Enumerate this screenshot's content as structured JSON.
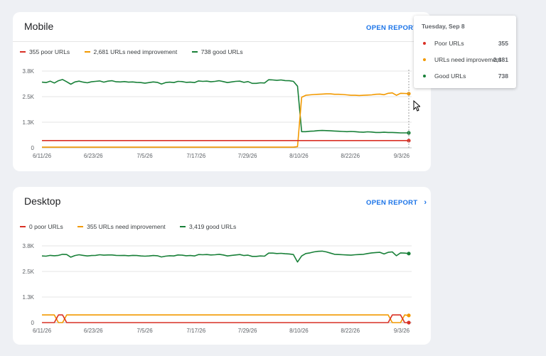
{
  "colors": {
    "poor": "#d93025",
    "needs": "#f29900",
    "good": "#188038",
    "accent": "#1a73e8",
    "grid": "#e0e0e0"
  },
  "mobile": {
    "title": "Mobile",
    "open_report": "OPEN REPORT",
    "legend": {
      "poor": "355 poor URLs",
      "needs": "2,681 URLs need improvement",
      "good": "738 good URLs"
    }
  },
  "desktop": {
    "title": "Desktop",
    "open_report": "OPEN REPORT",
    "legend": {
      "poor": "0 poor URLs",
      "needs": "355 URLs need improvement",
      "good": "3,419 good URLs"
    }
  },
  "tooltip": {
    "date": "Tuesday, Sep 8",
    "rows": [
      {
        "label": "Poor URLs",
        "value": "355"
      },
      {
        "label": "URLs need improvement",
        "value": "2,681"
      },
      {
        "label": "Good URLs",
        "value": "738"
      }
    ]
  },
  "chart_data": [
    {
      "type": "line",
      "name_hint": "Mobile",
      "x_ticks": [
        "6/11/26",
        "6/23/26",
        "7/5/26",
        "7/17/26",
        "7/29/26",
        "8/10/26",
        "8/22/26",
        "9/3/26"
      ],
      "y_ticks": [
        "0",
        "1.3K",
        "2.5K",
        "3.8K"
      ],
      "ylim": [
        0,
        3800
      ],
      "x_start": "6/11/26",
      "x_end": "9/8/26",
      "series": [
        {
          "key": "good",
          "values": [
            3250,
            3230,
            3300,
            3210,
            3320,
            3380,
            3270,
            3150,
            3260,
            3300,
            3250,
            3220,
            3270,
            3290,
            3310,
            3250,
            3300,
            3320,
            3270,
            3260,
            3280,
            3250,
            3260,
            3240,
            3230,
            3200,
            3230,
            3260,
            3240,
            3160,
            3230,
            3250,
            3230,
            3290,
            3280,
            3240,
            3250,
            3230,
            3310,
            3290,
            3300,
            3270,
            3290,
            3320,
            3280,
            3230,
            3260,
            3290,
            3300,
            3240,
            3280,
            3190,
            3190,
            3220,
            3210,
            3370,
            3360,
            3340,
            3360,
            3330,
            3320,
            3290,
            3050,
            800,
            800,
            820,
            830,
            850,
            860,
            850,
            840,
            830,
            820,
            810,
            800,
            810,
            800,
            780,
            770,
            790,
            780,
            760,
            760,
            770,
            760,
            760,
            750,
            740,
            740,
            738
          ]
        },
        {
          "key": "needs",
          "values": [
            30,
            30,
            30,
            30,
            30,
            30,
            30,
            30,
            30,
            30,
            30,
            30,
            30,
            30,
            30,
            30,
            30,
            30,
            30,
            30,
            30,
            30,
            30,
            30,
            30,
            30,
            30,
            30,
            30,
            30,
            30,
            30,
            30,
            30,
            30,
            30,
            30,
            30,
            30,
            30,
            30,
            30,
            30,
            30,
            30,
            30,
            30,
            30,
            30,
            30,
            30,
            30,
            30,
            30,
            30,
            30,
            30,
            30,
            30,
            30,
            30,
            30,
            60,
            2500,
            2600,
            2620,
            2640,
            2650,
            2660,
            2670,
            2670,
            2650,
            2650,
            2640,
            2620,
            2600,
            2600,
            2590,
            2600,
            2610,
            2620,
            2650,
            2660,
            2630,
            2700,
            2720,
            2600,
            2700,
            2690,
            2681
          ]
        },
        {
          "key": "poor",
          "values": [
            360,
            360,
            360,
            360,
            360,
            360,
            360,
            360,
            360,
            360,
            360,
            360,
            360,
            360,
            360,
            360,
            360,
            360,
            360,
            360,
            360,
            360,
            360,
            360,
            360,
            360,
            360,
            360,
            360,
            360,
            360,
            360,
            360,
            360,
            360,
            360,
            360,
            360,
            360,
            360,
            360,
            360,
            360,
            360,
            360,
            360,
            360,
            360,
            360,
            360,
            360,
            360,
            360,
            360,
            360,
            360,
            360,
            360,
            360,
            360,
            360,
            360,
            360,
            360,
            360,
            360,
            360,
            360,
            360,
            360,
            360,
            360,
            360,
            360,
            360,
            360,
            360,
            360,
            360,
            360,
            360,
            360,
            360,
            360,
            360,
            360,
            360,
            360,
            360,
            355
          ]
        }
      ]
    },
    {
      "type": "line",
      "name_hint": "Desktop",
      "x_ticks": [
        "6/11/26",
        "6/23/26",
        "7/5/26",
        "7/17/26",
        "7/29/26",
        "8/10/26",
        "8/22/26",
        "9/3/26"
      ],
      "y_ticks": [
        "0",
        "1.3K",
        "2.5K",
        "3.8K"
      ],
      "ylim": [
        0,
        3800
      ],
      "x_start": "6/11/26",
      "x_end": "9/8/26",
      "series": [
        {
          "key": "good",
          "values": [
            3300,
            3290,
            3330,
            3310,
            3330,
            3380,
            3370,
            3240,
            3320,
            3360,
            3330,
            3300,
            3320,
            3330,
            3360,
            3340,
            3350,
            3350,
            3330,
            3320,
            3330,
            3310,
            3330,
            3320,
            3300,
            3290,
            3300,
            3320,
            3310,
            3250,
            3290,
            3310,
            3300,
            3350,
            3340,
            3310,
            3320,
            3300,
            3370,
            3360,
            3370,
            3350,
            3360,
            3380,
            3350,
            3300,
            3330,
            3350,
            3370,
            3320,
            3340,
            3280,
            3280,
            3300,
            3290,
            3440,
            3440,
            3420,
            3430,
            3410,
            3400,
            3370,
            3000,
            3300,
            3420,
            3450,
            3500,
            3530,
            3540,
            3500,
            3440,
            3380,
            3370,
            3360,
            3350,
            3340,
            3360,
            3370,
            3380,
            3420,
            3450,
            3470,
            3480,
            3400,
            3480,
            3500,
            3310,
            3450,
            3440,
            3419
          ]
        },
        {
          "key": "needs",
          "values": [
            380,
            380,
            380,
            380,
            0,
            0,
            380,
            380,
            380,
            380,
            380,
            380,
            380,
            380,
            380,
            380,
            380,
            380,
            380,
            380,
            380,
            380,
            380,
            380,
            380,
            380,
            380,
            380,
            380,
            380,
            380,
            380,
            380,
            380,
            380,
            380,
            380,
            380,
            380,
            380,
            380,
            380,
            380,
            380,
            380,
            380,
            380,
            380,
            380,
            380,
            380,
            380,
            380,
            380,
            380,
            380,
            380,
            380,
            380,
            380,
            380,
            380,
            380,
            380,
            380,
            380,
            380,
            380,
            380,
            380,
            380,
            380,
            380,
            380,
            380,
            380,
            380,
            380,
            380,
            380,
            380,
            380,
            380,
            380,
            380,
            0,
            0,
            0,
            380,
            355
          ]
        },
        {
          "key": "poor",
          "values": [
            0,
            0,
            0,
            0,
            380,
            380,
            0,
            0,
            0,
            0,
            0,
            0,
            0,
            0,
            0,
            0,
            0,
            0,
            0,
            0,
            0,
            0,
            0,
            0,
            0,
            0,
            0,
            0,
            0,
            0,
            0,
            0,
            0,
            0,
            0,
            0,
            0,
            0,
            0,
            0,
            0,
            0,
            0,
            0,
            0,
            0,
            0,
            0,
            0,
            0,
            0,
            0,
            0,
            0,
            0,
            0,
            0,
            0,
            0,
            0,
            0,
            0,
            0,
            0,
            0,
            0,
            0,
            0,
            0,
            0,
            0,
            0,
            0,
            0,
            0,
            0,
            0,
            0,
            0,
            0,
            0,
            0,
            0,
            0,
            0,
            380,
            380,
            380,
            0,
            0
          ]
        }
      ]
    }
  ]
}
